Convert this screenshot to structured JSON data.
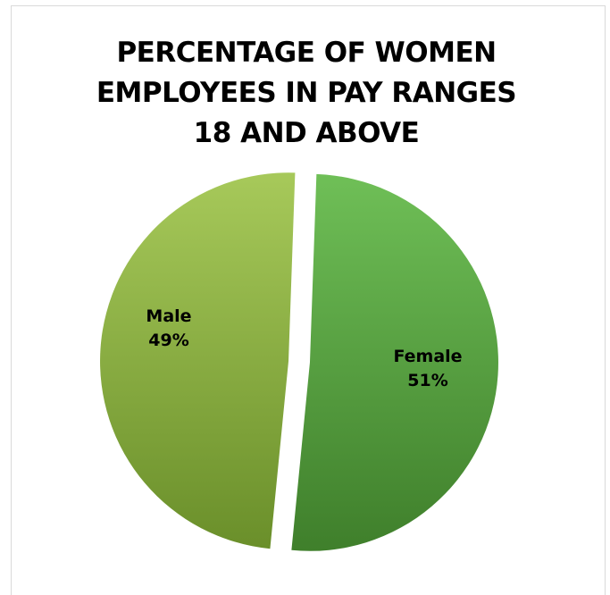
{
  "chart_data": {
    "type": "pie",
    "title_lines": [
      "PERCENTAGE OF WOMEN",
      "EMPLOYEES IN PAY RANGES",
      "18 AND ABOVE"
    ],
    "slices": [
      {
        "name": "Female",
        "value": 51,
        "label": "51%",
        "color_light": "#6fbf57",
        "color_dark": "#3f7f2b"
      },
      {
        "name": "Male",
        "value": 49,
        "label": "49%",
        "color_light": "#a7c95a",
        "color_dark": "#6a8f2a"
      }
    ],
    "exploded": true,
    "legend": "none"
  }
}
